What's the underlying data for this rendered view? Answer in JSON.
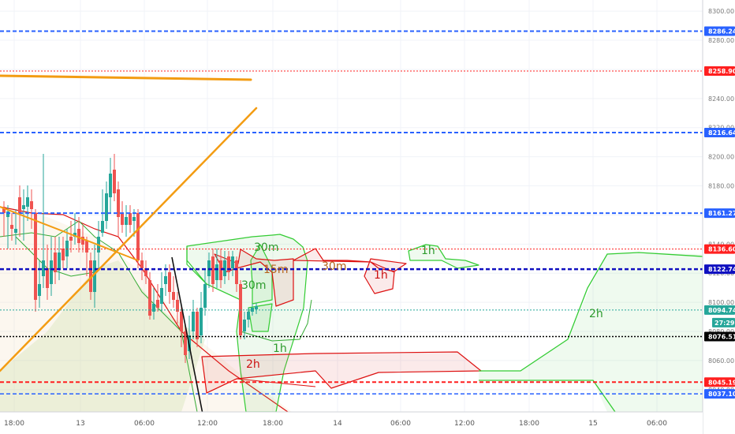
{
  "chart_data": {
    "type": "candlestick",
    "y_range": [
      8026.9,
      8305.5
    ],
    "y_ticks": [
      "8300.00",
      "8280.00",
      "8260.00",
      "8240.00",
      "8220.00",
      "8200.00",
      "8180.00",
      "8160.00",
      "8140.00",
      "8120.00",
      "8100.00",
      "8080.00",
      "8060.00",
      "8040.00"
    ],
    "x_ticks": [
      "18:00",
      "13",
      "06:00",
      "12:00",
      "18:00",
      "14",
      "06:00",
      "12:00",
      "18:00",
      "15",
      "06:00"
    ],
    "horizontal_levels": [
      {
        "value": 8286.24,
        "label": "8286.24",
        "color": "#2962ff",
        "style": "dashed",
        "width": 2
      },
      {
        "value": 8258.9,
        "label": "8258.90",
        "color": "#ff1f1f",
        "style": "dotted",
        "width": 1
      },
      {
        "value": 8216.64,
        "label": "8216.64",
        "color": "#2962ff",
        "style": "dashed",
        "width": 2
      },
      {
        "value": 8161.27,
        "label": "8161.27",
        "color": "#2962ff",
        "style": "dashed",
        "width": 2
      },
      {
        "value": 8136.6,
        "label": "8136.60",
        "color": "#ff1f1f",
        "style": "dotted",
        "width": 1
      },
      {
        "value": 8122.74,
        "label": "8122.74",
        "color": "#1010c0",
        "style": "dashed",
        "width": 2.5
      },
      {
        "value": 8094.74,
        "label": "8094.74",
        "color": "#26a69a",
        "style": "dotted",
        "width": 1
      },
      {
        "value": 8076.51,
        "label": "8076.51",
        "color": "#000000",
        "style": "dotted",
        "width": 1.5
      },
      {
        "value": 8045.19,
        "label": "8045.19",
        "color": "#ff1f1f",
        "style": "dashed",
        "width": 2
      },
      {
        "value": 8037.1,
        "label": "8037.10",
        "color": "#2962ff",
        "style": "dashed",
        "width": 1.5
      }
    ],
    "current_price": {
      "value": 8094.74,
      "countdown": "27:29"
    },
    "cloud_labels": [
      "30m",
      "15m",
      "30m",
      "1h",
      "1h",
      "1h",
      "2h",
      "2h"
    ],
    "colors": {
      "up": "#26a69a",
      "down": "#ef5350",
      "cloud_green": "#33cc33",
      "cloud_red": "#dd1111",
      "trendline": "#f39c12"
    }
  }
}
